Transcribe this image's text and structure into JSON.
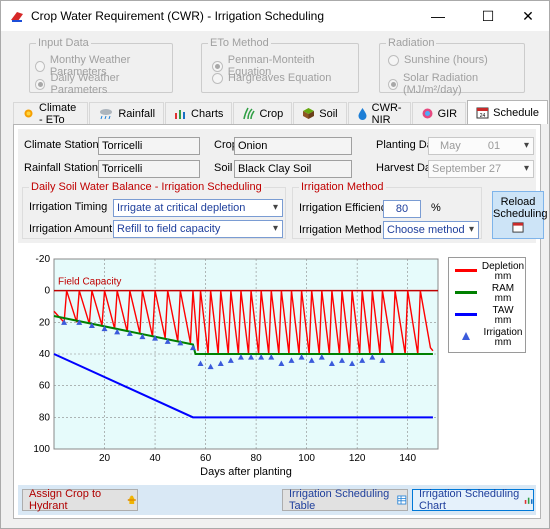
{
  "window": {
    "title": "Crop Water Requirement (CWR) - Irrigation Scheduling",
    "minimize": "—",
    "maximize": "☐",
    "close": "✕"
  },
  "input_data": {
    "title": "Input Data",
    "options": [
      "Monthy Weather Parameters",
      "Daily Weather Parameters"
    ],
    "selected": 1
  },
  "eto_method": {
    "title": "ETo Method",
    "options": [
      "Penman-Monteith Equation",
      "Hargreaves Equation"
    ],
    "selected": 0
  },
  "radiation": {
    "title": "Radiation",
    "options": [
      "Sunshine (hours)",
      "Solar Radiation (MJ/m²/day)"
    ],
    "selected": 1
  },
  "tabs": [
    {
      "label": "Climate - ETo",
      "icon": "sun-icon"
    },
    {
      "label": "Rainfall",
      "icon": "cloud-rain-icon"
    },
    {
      "label": "Charts",
      "icon": "bar-chart-icon"
    },
    {
      "label": "Crop",
      "icon": "plant-icon"
    },
    {
      "label": "Soil",
      "icon": "soil-cube-icon"
    },
    {
      "label": "CWR-NIR",
      "icon": "water-drop-icon"
    },
    {
      "label": "GIR",
      "icon": "sprinkler-icon"
    },
    {
      "label": "Schedule",
      "icon": "calendar-icon"
    }
  ],
  "active_tab": "Schedule",
  "info": {
    "climate_station_label": "Climate Station",
    "climate_station": "Torricelli",
    "rainfall_station_label": "Rainfall Station",
    "rainfall_station": "Torricelli",
    "crop_label": "Crop",
    "crop": "Onion",
    "soil_label": "Soil",
    "soil": "Black Clay Soil",
    "planting_date_label": "Planting Date",
    "planting_month": "May",
    "planting_day": "01",
    "harvest_date_label": "Harvest Date",
    "harvest_date": "September 27"
  },
  "balance": {
    "title": "Daily Soil Water Balance - Irrigation Scheduling",
    "timing_label": "Irrigation Timing",
    "timing_value": "Irrigate at critical depletion",
    "amount_label": "Irrigation Amount",
    "amount_value": "Refill to field capacity"
  },
  "irr_method": {
    "title": "Irrigation Method",
    "efficiency_label": "Irrigation Efficiency",
    "efficiency_value": "80",
    "efficiency_unit": "%",
    "method_label": "Irrigation Method",
    "method_value": "Choose method"
  },
  "reload": {
    "line1": "Reload",
    "line2": "Scheduling"
  },
  "chart_data": {
    "type": "line",
    "xlabel": "Days after planting",
    "ylabel": "",
    "xlim": [
      0,
      152
    ],
    "ylim": [
      -20,
      100
    ],
    "y_inverted": true,
    "xticks": [
      20,
      40,
      60,
      80,
      100,
      120,
      140
    ],
    "yticks": [
      -20,
      0,
      20,
      40,
      60,
      80,
      100
    ],
    "annotation": "Field Capacity",
    "grid": true,
    "legend_position": "right",
    "colors": {
      "depletion": "#ff0000",
      "ram": "#008000",
      "taw": "#0000ff",
      "irrigation": "#3b5bdb",
      "fc": "#c00000"
    },
    "series": [
      {
        "name": "Depletion mm",
        "type": "line",
        "color": "#ff0000",
        "x": [
          0,
          4,
          5,
          9,
          10,
          14,
          15,
          19,
          20,
          24,
          25,
          29,
          30,
          34,
          35,
          39,
          40,
          44,
          45,
          49,
          50,
          54,
          55,
          57,
          58,
          61,
          62,
          65,
          66,
          69,
          70,
          73,
          74,
          77,
          78,
          81,
          82,
          85,
          86,
          89,
          90,
          93,
          94,
          97,
          98,
          101,
          102,
          105,
          106,
          109,
          110,
          113,
          114,
          117,
          118,
          121,
          122,
          125,
          126,
          129,
          130,
          134,
          135,
          139,
          140,
          144,
          145,
          149,
          150
        ],
        "y": [
          13,
          20,
          0,
          20,
          0,
          21,
          0,
          22,
          0,
          24,
          0,
          26,
          0,
          27,
          0,
          29,
          0,
          30,
          0,
          32,
          0,
          33,
          0,
          38,
          0,
          40,
          0,
          40,
          0,
          40,
          0,
          40,
          0,
          40,
          0,
          40,
          0,
          40,
          0,
          40,
          0,
          40,
          0,
          40,
          0,
          40,
          0,
          40,
          0,
          40,
          0,
          40,
          0,
          40,
          0,
          40,
          0,
          40,
          0,
          40,
          0,
          40,
          0,
          40,
          0,
          40,
          0,
          36,
          38
        ]
      },
      {
        "name": "RAM mm",
        "type": "line",
        "color": "#008000",
        "x": [
          0,
          55,
          56,
          150
        ],
        "y": [
          16,
          34,
          40,
          40
        ]
      },
      {
        "name": "TAW mm",
        "type": "line",
        "color": "#0000ff",
        "x": [
          0,
          55,
          56,
          150
        ],
        "y": [
          40,
          80,
          80,
          80
        ]
      },
      {
        "name": "Irrigation mm",
        "type": "scatter",
        "color": "#3b5bdb",
        "x": [
          4,
          10,
          15,
          20,
          25,
          30,
          35,
          40,
          45,
          50,
          55,
          58,
          62,
          66,
          70,
          74,
          78,
          82,
          86,
          90,
          94,
          98,
          102,
          106,
          110,
          114,
          118,
          122,
          126,
          130
        ],
        "y": [
          20,
          20,
          22,
          24,
          26,
          27,
          29,
          30,
          32,
          33,
          36,
          46,
          48,
          46,
          44,
          42,
          42,
          42,
          42,
          46,
          44,
          42,
          44,
          42,
          46,
          44,
          46,
          44,
          42,
          44
        ]
      }
    ]
  },
  "legend": [
    {
      "label": "Depletion\nmm",
      "l1": "Depletion",
      "l2": "mm",
      "color": "#ff0000",
      "kind": "line"
    },
    {
      "label": "RAM\nmm",
      "l1": "RAM",
      "l2": "mm",
      "color": "#008000",
      "kind": "line"
    },
    {
      "label": "TAW\nmm",
      "l1": "TAW",
      "l2": "mm",
      "color": "#0000ff",
      "kind": "line"
    },
    {
      "label": "Irrigation\nmm",
      "l1": "Irrigation",
      "l2": "mm",
      "color": "#3b5bdb",
      "kind": "marker"
    }
  ],
  "bottom": {
    "assign": "Assign Crop to Hydrant",
    "table": "Irrigation Scheduling Table",
    "chart": "Irrigation Scheduling Chart"
  }
}
